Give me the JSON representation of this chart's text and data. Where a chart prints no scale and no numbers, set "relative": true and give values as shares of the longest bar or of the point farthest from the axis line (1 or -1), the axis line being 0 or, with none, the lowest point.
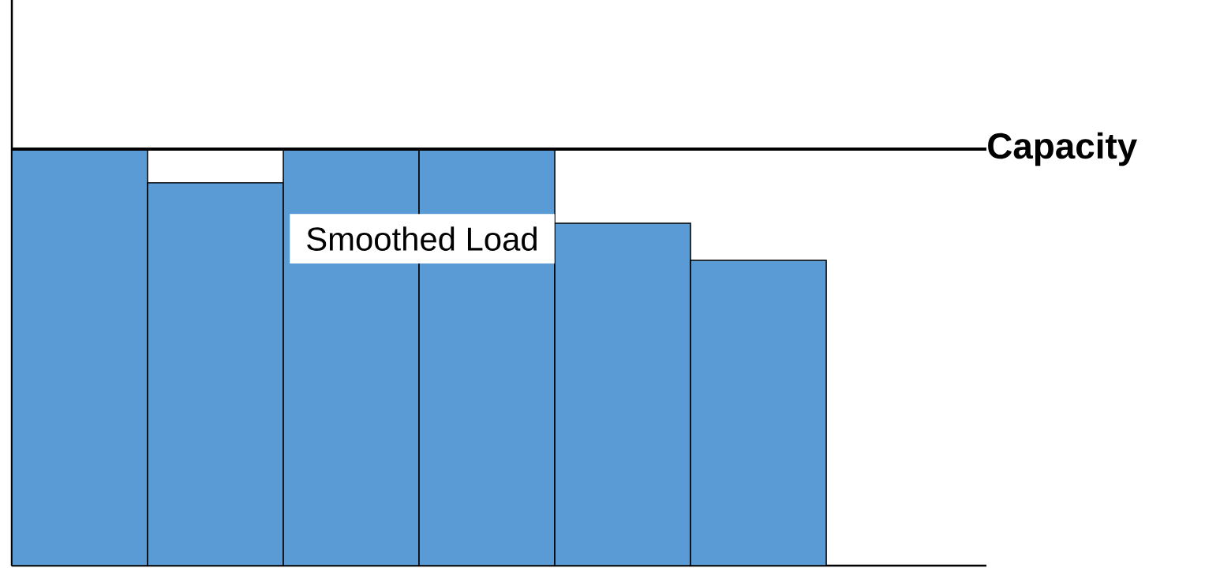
{
  "chart_data": {
    "type": "bar",
    "relative": true,
    "categories": [
      null,
      null,
      null,
      null,
      null,
      null
    ],
    "values": [
      1,
      0.919,
      1,
      1,
      0.822,
      0.733
    ],
    "color": "#5b9bd5",
    "ref_lines": [
      {
        "axis": "y",
        "value": 1,
        "label": "Capacity",
        "color": "#000000"
      }
    ],
    "annotations": [
      "Smoothed Load"
    ]
  }
}
